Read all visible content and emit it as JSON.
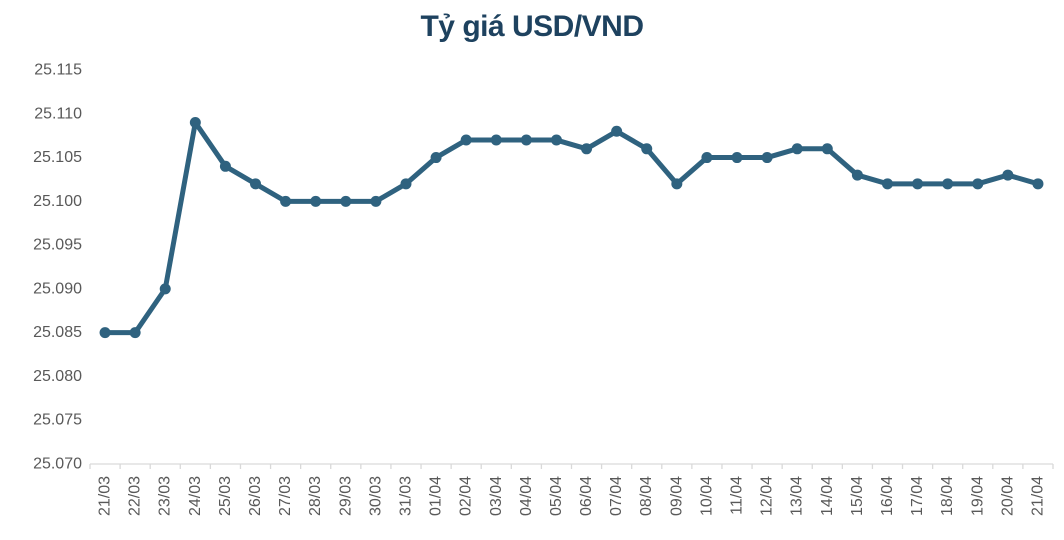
{
  "chart_data": {
    "type": "line",
    "title": "Tỷ giá USD/VND",
    "xlabel": "",
    "ylabel": "",
    "categories": [
      "21/03",
      "22/03",
      "23/03",
      "24/03",
      "25/03",
      "26/03",
      "27/03",
      "28/03",
      "29/03",
      "30/03",
      "31/03",
      "01/04",
      "02/04",
      "03/04",
      "04/04",
      "05/04",
      "06/04",
      "07/04",
      "08/04",
      "09/04",
      "10/04",
      "11/04",
      "12/04",
      "13/04",
      "14/04",
      "15/04",
      "16/04",
      "17/04",
      "18/04",
      "19/04",
      "20/04",
      "21/04"
    ],
    "values": [
      25085,
      25085,
      25090,
      25109,
      25104,
      25102,
      25100,
      25100,
      25100,
      25100,
      25102,
      25105,
      25107,
      25107,
      25107,
      25107,
      25106,
      25108,
      25106,
      25102,
      25105,
      25105,
      25105,
      25106,
      25106,
      25103,
      25102,
      25102,
      25102,
      25102,
      25103,
      25102
    ],
    "y_axis": {
      "min": 25070,
      "max": 25115,
      "step": 5,
      "tick_labels": [
        "25.115",
        "25.110",
        "25.105",
        "25.100",
        "25.095",
        "25.090",
        "25.085",
        "25.080",
        "25.075",
        "25.070"
      ]
    },
    "x_axis": {
      "label_rotation_degrees": -90,
      "tick_marks": "between-categories"
    },
    "grid": "none",
    "legend": "none",
    "colors": {
      "line": "#2F627F",
      "marker": "#2F627F",
      "title": "#1E425F",
      "axis_labels": "#595959",
      "axis_line": "#D9D9D9"
    },
    "background": "#FFFFFF"
  }
}
